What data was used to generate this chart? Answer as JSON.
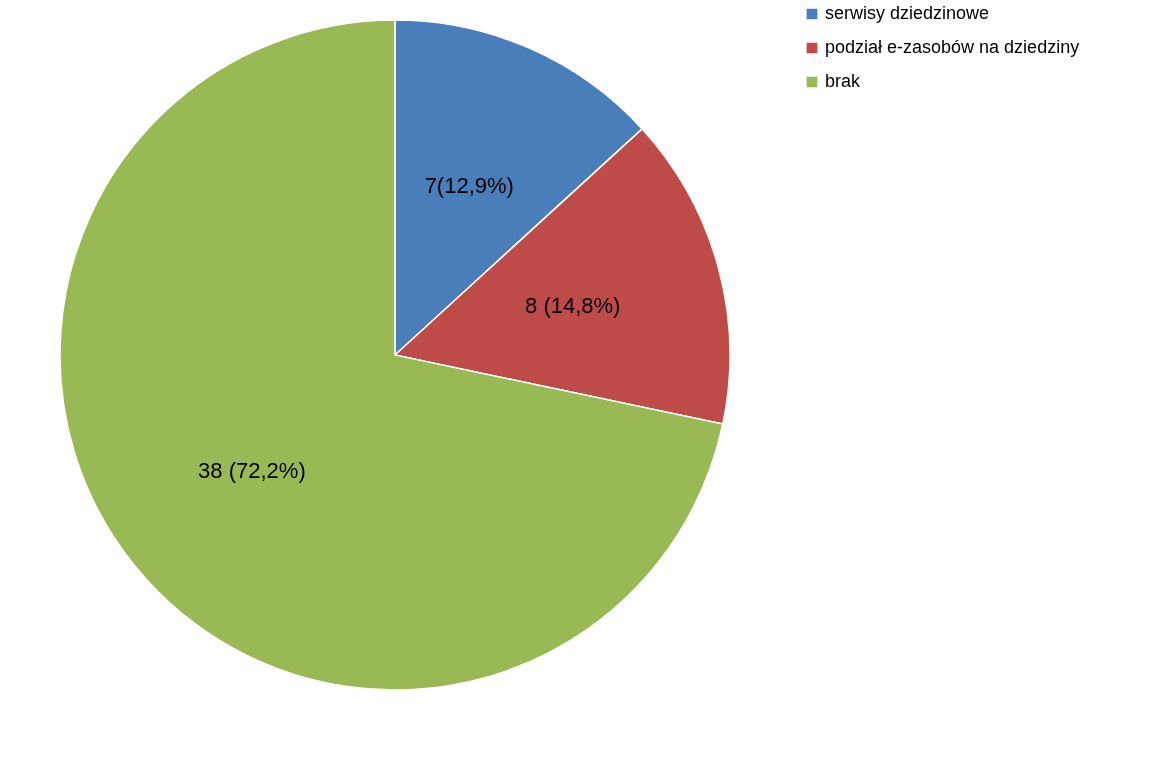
{
  "chart_data": {
    "type": "pie",
    "categories": [
      "serwisy dziedzinowe",
      "podział e-zasobów na dziedziny",
      "brak"
    ],
    "values": [
      7,
      8,
      38
    ],
    "colors": [
      "#4a7ebb",
      "#be4b48",
      "#98b954"
    ],
    "value_labels": [
      "7(12,9%)",
      "8 (14,8%)",
      "38 (72,2%)"
    ],
    "legend": "right"
  }
}
